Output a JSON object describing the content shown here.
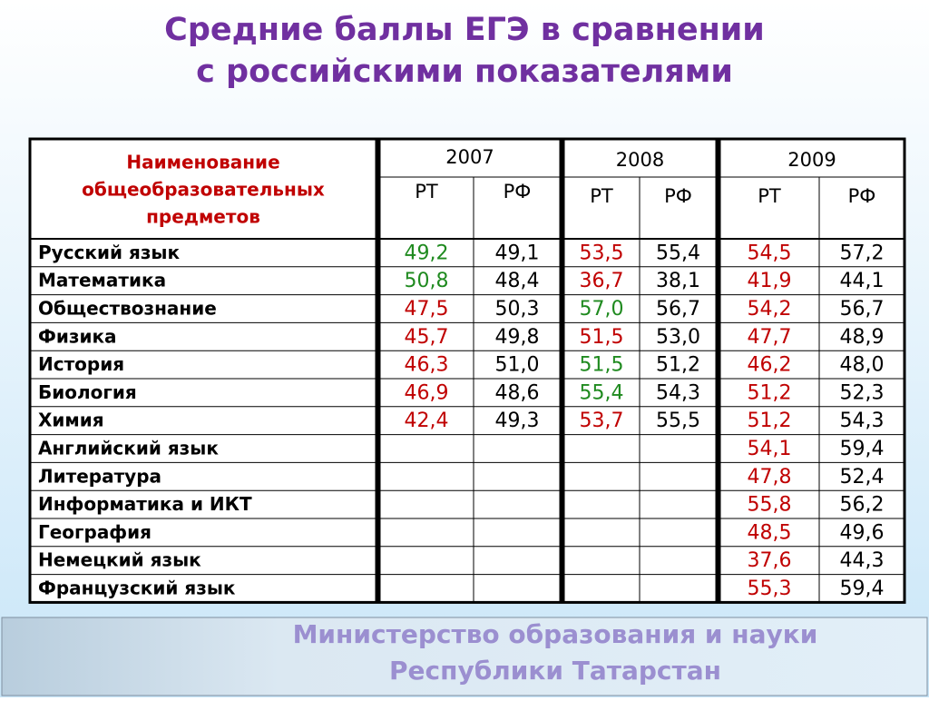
{
  "title": [
    "Средние баллы ЕГЭ в сравнении",
    "с российскими показателями"
  ],
  "table": {
    "subject_header": [
      "Наименование",
      "общеобразовательных",
      "предметов"
    ],
    "years": [
      "2007",
      "2008",
      "2009"
    ],
    "column_headers": [
      "РТ",
      "РФ",
      "РТ",
      "РФ",
      "РТ",
      "РФ"
    ],
    "rows": [
      [
        "Русский язык",
        "49,2",
        "49,1",
        "53,5",
        "55,4",
        "54,5",
        "57,2"
      ],
      [
        "Математика",
        "50,8",
        "48,4",
        "36,7",
        "38,1",
        "41,9",
        "44,1"
      ],
      [
        "Обществознание",
        "47,5",
        "50,3",
        "57,0",
        "56,7",
        "54,2",
        "56,7"
      ],
      [
        "Физика",
        "45,7",
        "49,8",
        "51,5",
        "53,0",
        "47,7",
        "48,9"
      ],
      [
        "История",
        "46,3",
        "51,0",
        "51,5",
        "51,2",
        "46,2",
        "48,0"
      ],
      [
        "Биология",
        "46,9",
        "48,6",
        "55,4",
        "54,3",
        "51,2",
        "52,3"
      ],
      [
        "Химия",
        "42,4",
        "49,3",
        "53,7",
        "55,5",
        "51,2",
        "54,3"
      ],
      [
        "Английский язык",
        null,
        null,
        null,
        null,
        "54,1",
        "59,4"
      ],
      [
        "Литература",
        null,
        null,
        null,
        null,
        "47,8",
        "52,4"
      ],
      [
        "Информатика и ИКТ",
        null,
        null,
        null,
        null,
        "55,8",
        "56,2"
      ],
      [
        "География",
        null,
        null,
        null,
        null,
        "48,5",
        "49,6"
      ],
      [
        "Немецкий язык",
        null,
        null,
        null,
        null,
        "37,6",
        "44,3"
      ],
      [
        "Французский язык",
        null,
        null,
        null,
        null,
        "55,3",
        "59,4"
      ]
    ]
  },
  "footer": [
    "Министерство образования и науки",
    "Республики Татарстан"
  ]
}
